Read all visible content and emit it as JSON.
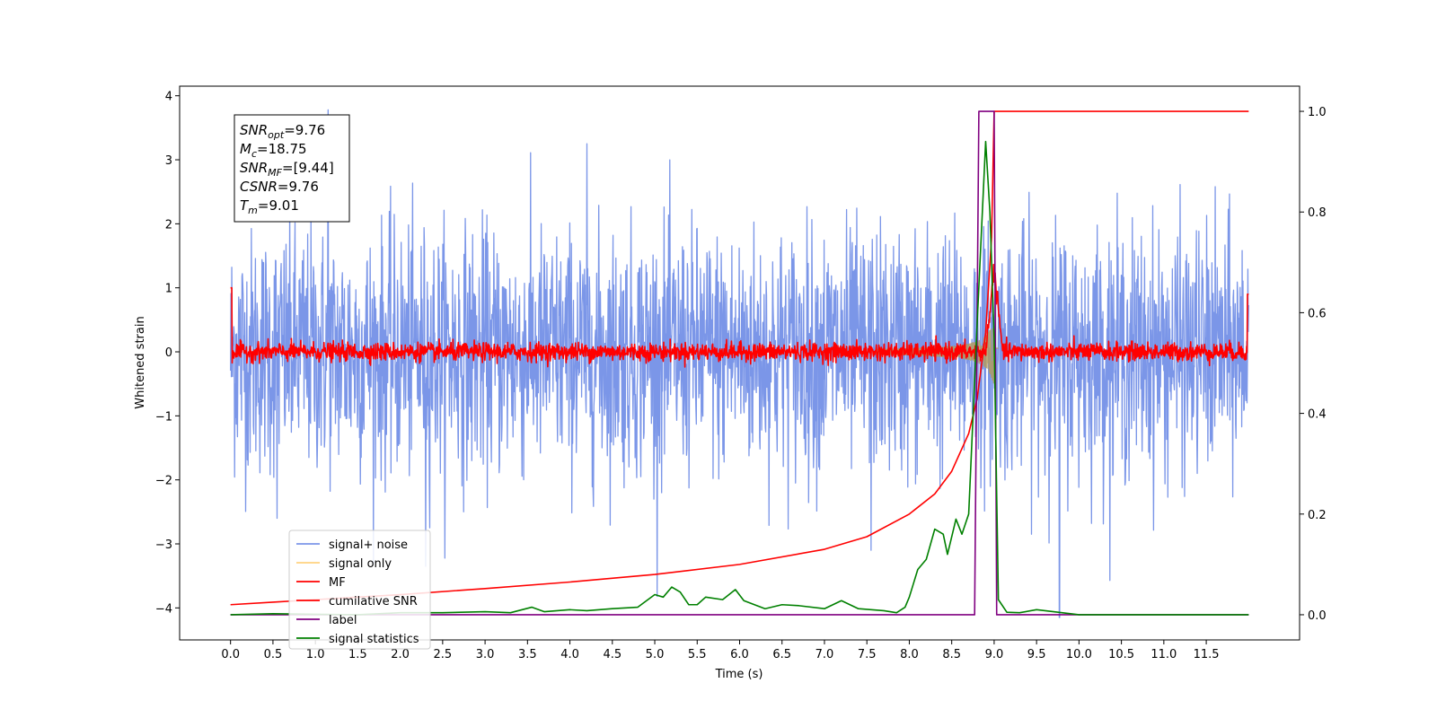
{
  "chart_data": {
    "type": "line",
    "title": "",
    "xlabel": "Time (s)",
    "ylabel": "Whitened strain",
    "y2label": "",
    "xlim": [
      -0.6,
      12.6
    ],
    "ylim": [
      -4.5,
      4.15
    ],
    "y2lim": [
      -0.05,
      1.05
    ],
    "x_ticks": [
      0.0,
      0.5,
      1.0,
      1.5,
      2.0,
      2.5,
      3.0,
      3.5,
      4.0,
      4.5,
      5.0,
      5.5,
      6.0,
      6.5,
      7.0,
      7.5,
      8.0,
      8.5,
      9.0,
      9.5,
      10.0,
      10.5,
      11.0,
      11.5
    ],
    "x_tick_labels": [
      "0.0",
      "0.5",
      "1.0",
      "1.5",
      "2.0",
      "2.5",
      "3.0",
      "3.5",
      "4.0",
      "4.5",
      "5.0",
      "5.5",
      "6.0",
      "6.5",
      "7.0",
      "7.5",
      "8.0",
      "8.5",
      "9.0",
      "9.5",
      "10.0",
      "10.5",
      "11.0",
      "11.5"
    ],
    "y_ticks": [
      -4,
      -3,
      -2,
      -1,
      0,
      1,
      2,
      3,
      4
    ],
    "y_tick_labels": [
      "−4",
      "−3",
      "−2",
      "−1",
      "0",
      "1",
      "2",
      "3",
      "4"
    ],
    "y2_ticks": [
      0.0,
      0.2,
      0.4,
      0.6,
      0.8,
      1.0
    ],
    "y2_tick_labels": [
      "0.0",
      "0.2",
      "0.4",
      "0.6",
      "0.8",
      "1.0"
    ],
    "grid": false,
    "legend_position": "lower-left",
    "series": [
      {
        "name": "signal+ noise",
        "axis": "left",
        "color": "#7b96e8",
        "kind": "noise",
        "x_range": [
          0.0,
          12.0
        ],
        "std": 0.95,
        "extremes": [
          [
            1.15,
            3.78
          ],
          [
            0.55,
            -2.6
          ],
          [
            4.2,
            3.25
          ],
          [
            9.77,
            -4.15
          ],
          [
            7.55,
            -3.1
          ],
          [
            2.3,
            -3.35
          ]
        ]
      },
      {
        "name": "signal only",
        "axis": "left",
        "color": "#ffd27f",
        "kind": "chirp",
        "x_range": [
          7.6,
          9.05
        ],
        "peak_time": 9.0,
        "peak_amplitude": 0.6
      },
      {
        "name": "MF",
        "axis": "left",
        "color": "#ff0000",
        "kind": "noise",
        "x_range": [
          0.0,
          12.0
        ],
        "std": 0.07,
        "peak": [
          9.0,
          1.3
        ],
        "edge_values": [
          [
            0.0,
            1.0
          ],
          [
            12.0,
            0.9
          ]
        ]
      },
      {
        "name": "cumilative SNR",
        "axis": "right",
        "color": "#ff0000",
        "points": [
          [
            0.0,
            0.02
          ],
          [
            0.5,
            0.025
          ],
          [
            1.0,
            0.03
          ],
          [
            2.0,
            0.04
          ],
          [
            3.0,
            0.052
          ],
          [
            4.0,
            0.065
          ],
          [
            5.0,
            0.08
          ],
          [
            6.0,
            0.1
          ],
          [
            7.0,
            0.13
          ],
          [
            7.5,
            0.155
          ],
          [
            8.0,
            0.2
          ],
          [
            8.3,
            0.24
          ],
          [
            8.5,
            0.285
          ],
          [
            8.7,
            0.36
          ],
          [
            8.8,
            0.43
          ],
          [
            8.9,
            0.56
          ],
          [
            8.97,
            0.75
          ],
          [
            9.0,
            1.0
          ],
          [
            10.0,
            1.0
          ],
          [
            11.0,
            1.0
          ],
          [
            12.0,
            1.0
          ]
        ]
      },
      {
        "name": "label",
        "axis": "right",
        "color": "#800080",
        "points": [
          [
            0.0,
            0.0
          ],
          [
            8.77,
            0.0
          ],
          [
            8.82,
            1.0
          ],
          [
            9.0,
            1.0
          ],
          [
            9.03,
            0.0
          ],
          [
            12.0,
            0.0
          ]
        ]
      },
      {
        "name": "signal statistics",
        "axis": "right",
        "color": "#008000",
        "points": [
          [
            0.0,
            0.0
          ],
          [
            0.5,
            0.002
          ],
          [
            1.0,
            0.001
          ],
          [
            1.5,
            0.0
          ],
          [
            2.0,
            0.004
          ],
          [
            2.5,
            0.004
          ],
          [
            3.0,
            0.006
          ],
          [
            3.3,
            0.004
          ],
          [
            3.55,
            0.015
          ],
          [
            3.7,
            0.006
          ],
          [
            4.0,
            0.01
          ],
          [
            4.2,
            0.008
          ],
          [
            4.5,
            0.012
          ],
          [
            4.8,
            0.015
          ],
          [
            5.0,
            0.04
          ],
          [
            5.1,
            0.035
          ],
          [
            5.2,
            0.055
          ],
          [
            5.3,
            0.045
          ],
          [
            5.4,
            0.02
          ],
          [
            5.5,
            0.02
          ],
          [
            5.6,
            0.035
          ],
          [
            5.8,
            0.03
          ],
          [
            5.95,
            0.05
          ],
          [
            6.05,
            0.028
          ],
          [
            6.3,
            0.012
          ],
          [
            6.5,
            0.02
          ],
          [
            6.7,
            0.018
          ],
          [
            7.0,
            0.012
          ],
          [
            7.2,
            0.028
          ],
          [
            7.4,
            0.012
          ],
          [
            7.7,
            0.008
          ],
          [
            7.85,
            0.004
          ],
          [
            7.95,
            0.015
          ],
          [
            8.0,
            0.035
          ],
          [
            8.1,
            0.09
          ],
          [
            8.2,
            0.11
          ],
          [
            8.3,
            0.17
          ],
          [
            8.4,
            0.16
          ],
          [
            8.45,
            0.12
          ],
          [
            8.55,
            0.19
          ],
          [
            8.62,
            0.16
          ],
          [
            8.7,
            0.2
          ],
          [
            8.8,
            0.58
          ],
          [
            8.9,
            0.94
          ],
          [
            8.95,
            0.8
          ],
          [
            9.0,
            0.55
          ],
          [
            9.05,
            0.03
          ],
          [
            9.15,
            0.005
          ],
          [
            9.3,
            0.004
          ],
          [
            9.5,
            0.01
          ],
          [
            9.7,
            0.006
          ],
          [
            10.0,
            0.0
          ],
          [
            11.0,
            0.0
          ],
          [
            12.0,
            0.0
          ]
        ]
      }
    ],
    "annotation_lines": [
      {
        "sym": "SNR",
        "sub": "opt",
        "val": "=9.76"
      },
      {
        "sym": "M",
        "sub": "c",
        "val": "=18.75"
      },
      {
        "sym": "SNR",
        "sub": "MF",
        "val": "=[9.44]"
      },
      {
        "sym": "CSNR",
        "sub": "",
        "val": "=9.76"
      },
      {
        "sym": "T",
        "sub": "m",
        "val": "=9.01"
      }
    ]
  }
}
